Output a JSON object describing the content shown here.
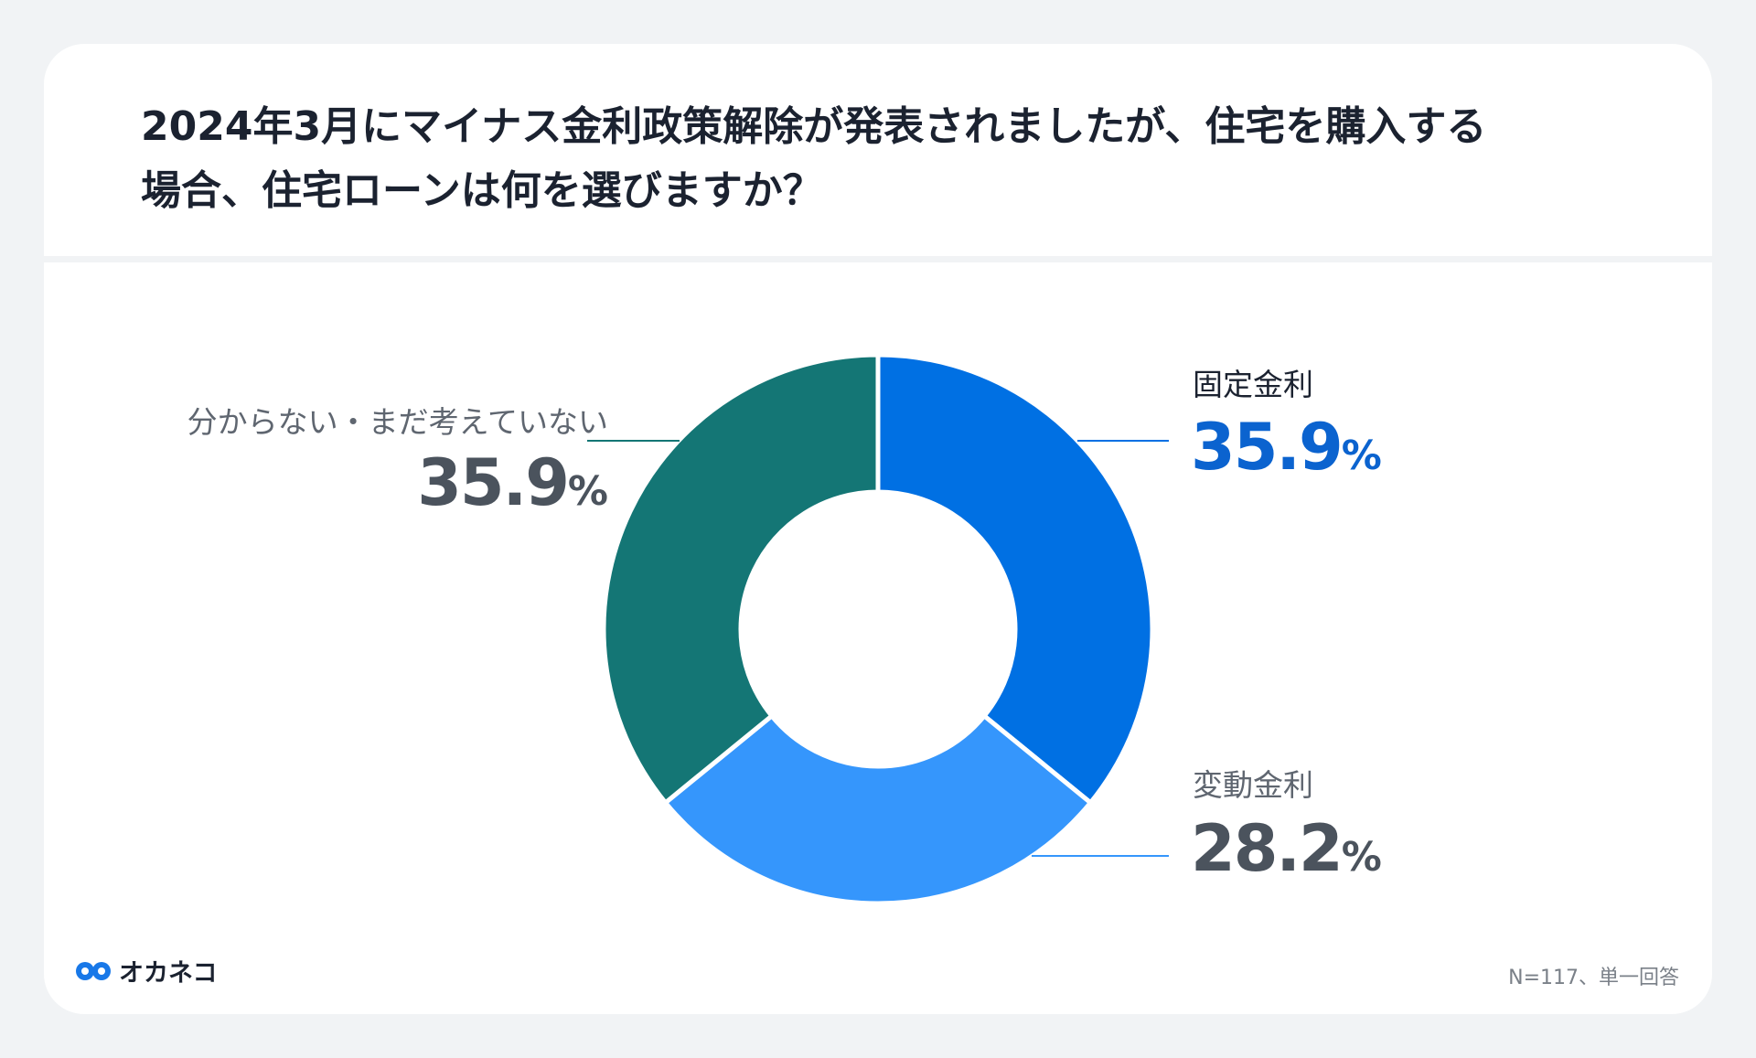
{
  "header": {
    "title_line1": "2024年3月にマイナス金利政策解除が発表されましたが、住宅を購入する",
    "title_line2": "場合、住宅ローンは何を選びますか？"
  },
  "chart_data": {
    "type": "pie",
    "donut": true,
    "categories": [
      "固定金利",
      "変動金利",
      "分からない・まだ考えていない"
    ],
    "values": [
      35.9,
      28.2,
      35.9
    ],
    "value_labels": [
      "35.9",
      "28.2",
      "35.9"
    ],
    "unit": "%",
    "colors": [
      "#0070e3",
      "#3596fc",
      "#147675"
    ],
    "label_colors": [
      "#0b63cf",
      "#4b535d",
      "#4b535d"
    ],
    "start_angle_deg": 0,
    "direction": "clockwise"
  },
  "footer": {
    "brand": "オカネコ",
    "note": "N=117、単一回答"
  },
  "icons": {
    "brand": "okane-logo-icon"
  },
  "colors": {
    "text": "#1b2230",
    "background": "#f1f3f5",
    "card": "#ffffff"
  }
}
